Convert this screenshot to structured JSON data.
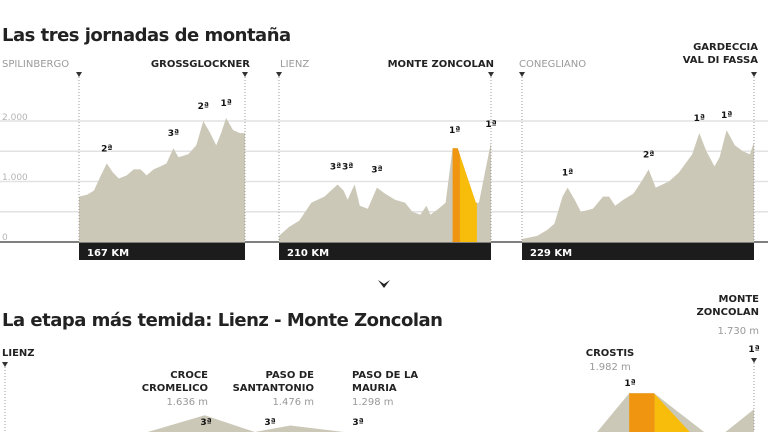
{
  "colors": {
    "profile": "#cbc8b8",
    "highlight_dark": "#f0950f",
    "highlight_light": "#f8bd0a",
    "bar": "#1c1c1c",
    "grid": "#e2e2e2"
  },
  "chart_data": [
    {
      "type": "area",
      "title": "Las tres jornadas de montaña",
      "ylabel": "",
      "yticks": [
        "2.000",
        "1.000",
        "0"
      ],
      "ylim": [
        0,
        2000
      ],
      "grid": true,
      "stages": [
        {
          "start": "SPILINBERGO",
          "end": "GROSSGLOCKNER",
          "distance_label": "167 KM",
          "km": 167,
          "profile": [
            [
              0,
              750
            ],
            [
              8,
              780
            ],
            [
              15,
              850
            ],
            [
              22,
              1100
            ],
            [
              28,
              1300
            ],
            [
              34,
              1150
            ],
            [
              40,
              1050
            ],
            [
              48,
              1100
            ],
            [
              55,
              1200
            ],
            [
              62,
              1200
            ],
            [
              68,
              1100
            ],
            [
              75,
              1200
            ],
            [
              82,
              1250
            ],
            [
              88,
              1300
            ],
            [
              95,
              1550
            ],
            [
              100,
              1400
            ],
            [
              110,
              1450
            ],
            [
              118,
              1600
            ],
            [
              125,
              2000
            ],
            [
              132,
              1800
            ],
            [
              138,
              1600
            ],
            [
              143,
              1800
            ],
            [
              148,
              2050
            ],
            [
              155,
              1850
            ],
            [
              162,
              1800
            ],
            [
              167,
              1800
            ]
          ],
          "climbs": [
            {
              "km": 28,
              "elev": 1300,
              "cat": "2ª"
            },
            {
              "km": 95,
              "elev": 1550,
              "cat": "3ª"
            },
            {
              "km": 125,
              "elev": 2000,
              "cat": "2ª"
            },
            {
              "km": 148,
              "elev": 2050,
              "cat": "1ª"
            }
          ]
        },
        {
          "start": "LIENZ",
          "end": "MONTE ZONCOLAN",
          "distance_label": "210 KM",
          "km": 210,
          "profile": [
            [
              0,
              100
            ],
            [
              10,
              250
            ],
            [
              20,
              350
            ],
            [
              32,
              650
            ],
            [
              45,
              750
            ],
            [
              58,
              950
            ],
            [
              64,
              850
            ],
            [
              68,
              700
            ],
            [
              72,
              850
            ],
            [
              75,
              950
            ],
            [
              80,
              600
            ],
            [
              88,
              550
            ],
            [
              97,
              900
            ],
            [
              105,
              800
            ],
            [
              115,
              700
            ],
            [
              125,
              650
            ],
            [
              132,
              500
            ],
            [
              140,
              450
            ],
            [
              146,
              600
            ],
            [
              150,
              450
            ],
            [
              158,
              550
            ],
            [
              165,
              650
            ],
            [
              172,
              1550
            ],
            [
              177,
              1550
            ],
            [
              195,
              650
            ],
            [
              198,
              650
            ],
            [
              210,
              1650
            ]
          ],
          "highlight": [
            172,
            196
          ],
          "climbs": [
            {
              "km": 56,
              "elev": 1000,
              "cat": "3ª"
            },
            {
              "km": 68,
              "elev": 1000,
              "cat": "3ª"
            },
            {
              "km": 97,
              "elev": 950,
              "cat": "3ª"
            },
            {
              "km": 174,
              "elev": 1600,
              "cat": "1ª"
            },
            {
              "km": 210,
              "elev": 1700,
              "cat": "1ª"
            }
          ]
        },
        {
          "start": "CONEGLIANO",
          "end": "GARDECCIA VAL DI FASSA",
          "end_lines": [
            "GARDECCIA",
            "VAL DI FASSA"
          ],
          "distance_label": "229 KM",
          "km": 229,
          "profile": [
            [
              0,
              50
            ],
            [
              15,
              100
            ],
            [
              25,
              200
            ],
            [
              32,
              300
            ],
            [
              40,
              750
            ],
            [
              45,
              900
            ],
            [
              52,
              700
            ],
            [
              58,
              500
            ],
            [
              70,
              550
            ],
            [
              80,
              750
            ],
            [
              86,
              750
            ],
            [
              92,
              600
            ],
            [
              100,
              700
            ],
            [
              110,
              800
            ],
            [
              118,
              1000
            ],
            [
              125,
              1200
            ],
            [
              132,
              900
            ],
            [
              145,
              1000
            ],
            [
              155,
              1150
            ],
            [
              168,
              1450
            ],
            [
              175,
              1800
            ],
            [
              182,
              1500
            ],
            [
              190,
              1250
            ],
            [
              195,
              1400
            ],
            [
              202,
              1850
            ],
            [
              210,
              1600
            ],
            [
              218,
              1500
            ],
            [
              225,
              1450
            ],
            [
              229,
              1650
            ]
          ],
          "climbs": [
            {
              "km": 45,
              "elev": 900,
              "cat": "1ª"
            },
            {
              "km": 125,
              "elev": 1200,
              "cat": "2ª"
            },
            {
              "km": 175,
              "elev": 1800,
              "cat": "1ª"
            },
            {
              "km": 202,
              "elev": 1850,
              "cat": "1ª"
            }
          ]
        }
      ]
    },
    {
      "type": "area",
      "title": "La etapa más temida: Lienz - Monte Zoncolan",
      "km": 210,
      "start": "LIENZ",
      "profile": [
        [
          0,
          700
        ],
        [
          40,
          900
        ],
        [
          56,
          1636
        ],
        [
          70,
          1200
        ],
        [
          80,
          1476
        ],
        [
          95,
          1000
        ],
        [
          108,
          1298
        ],
        [
          130,
          900
        ],
        [
          160,
          800
        ],
        [
          166,
          900
        ],
        [
          175,
          1982
        ],
        [
          182,
          1982
        ],
        [
          196,
          700
        ],
        [
          202,
          650
        ],
        [
          210,
          1730
        ]
      ],
      "highlight": [
        175,
        192
      ],
      "passes": [
        {
          "name_lines": [
            "CROCE",
            "CROMELICO"
          ],
          "altitude": "1.636 m",
          "cat": "3ª"
        },
        {
          "name_lines": [
            "PASO DE",
            "SANTANTONIO"
          ],
          "altitude": "1.476 m",
          "cat": "3ª"
        },
        {
          "name_lines": [
            "PASO DE LA",
            "MAURIA"
          ],
          "altitude": "1.298 m",
          "cat": "3ª"
        },
        {
          "name_lines": [
            "CROSTIS"
          ],
          "altitude": "1.982 m",
          "cat": "1ª"
        },
        {
          "name_lines": [
            "MONTE",
            "ZONCOLAN"
          ],
          "altitude": "1.730 m",
          "cat": "1ª"
        }
      ]
    }
  ]
}
